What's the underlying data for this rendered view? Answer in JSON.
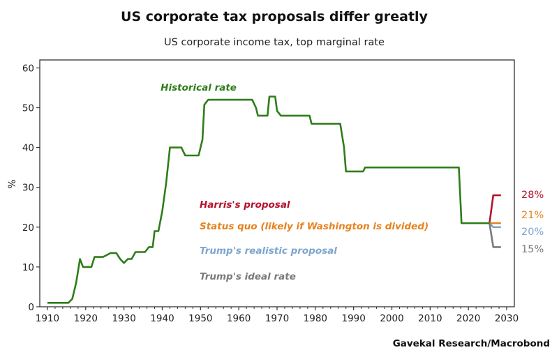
{
  "chart_data": {
    "type": "line",
    "title": "US corporate tax proposals differ greatly",
    "subtitle": "US corporate income tax, top marginal rate",
    "xlabel": "",
    "ylabel": "%",
    "xlim": [
      1908,
      2032
    ],
    "ylim": [
      0,
      62
    ],
    "xticks": [
      1910,
      1920,
      1930,
      1940,
      1950,
      1960,
      1970,
      1980,
      1990,
      2000,
      2010,
      2020,
      2030
    ],
    "yticks": [
      0,
      10,
      20,
      30,
      40,
      50,
      60
    ],
    "source": "Gavekal Research/Macrobond",
    "annotations": [
      {
        "text": "Historical rate",
        "color": "#2e7d1a"
      }
    ],
    "series": [
      {
        "name": "Historical rate",
        "color": "#2e7d1a",
        "points": [
          [
            1910,
            1
          ],
          [
            1915.5,
            1
          ],
          [
            1916.5,
            2
          ],
          [
            1917.5,
            6
          ],
          [
            1918.5,
            12
          ],
          [
            1919.3,
            10
          ],
          [
            1921.5,
            10
          ],
          [
            1922.3,
            12.5
          ],
          [
            1924.5,
            12.5
          ],
          [
            1925.5,
            13
          ],
          [
            1926.5,
            13.5
          ],
          [
            1928,
            13.5
          ],
          [
            1929,
            12
          ],
          [
            1930,
            11
          ],
          [
            1931,
            12
          ],
          [
            1932,
            12
          ],
          [
            1933,
            13.75
          ],
          [
            1935.5,
            13.75
          ],
          [
            1936.5,
            15
          ],
          [
            1937.5,
            15
          ],
          [
            1938,
            19
          ],
          [
            1939,
            19
          ],
          [
            1940,
            24
          ],
          [
            1941,
            31
          ],
          [
            1942,
            40
          ],
          [
            1945,
            40
          ],
          [
            1946,
            38
          ],
          [
            1949.5,
            38
          ],
          [
            1950.5,
            42
          ],
          [
            1951,
            50.75
          ],
          [
            1952,
            52
          ],
          [
            1963.5,
            52
          ],
          [
            1964.5,
            50
          ],
          [
            1965,
            48
          ],
          [
            1967.5,
            48
          ],
          [
            1968,
            52.8
          ],
          [
            1969.5,
            52.8
          ],
          [
            1970,
            49.2
          ],
          [
            1971,
            48
          ],
          [
            1978.5,
            48
          ],
          [
            1979,
            46
          ],
          [
            1986.5,
            46
          ],
          [
            1987.5,
            40
          ],
          [
            1988,
            34
          ],
          [
            1992.5,
            34
          ],
          [
            1993,
            35
          ],
          [
            2017.5,
            35
          ],
          [
            2018.2,
            21
          ],
          [
            2025.5,
            21
          ]
        ]
      },
      {
        "name": "Harris's proposal",
        "color": "#b5122e",
        "end_label": "28%",
        "points": [
          [
            2025.5,
            21
          ],
          [
            2026.5,
            28
          ],
          [
            2028.5,
            28
          ]
        ]
      },
      {
        "name": "Status quo (likely if Washington is divided)",
        "color": "#e6821e",
        "end_label": "21%",
        "points": [
          [
            2025.5,
            21
          ],
          [
            2028.5,
            21
          ]
        ]
      },
      {
        "name": "Trump's realistic proposal",
        "color": "#7ea6cf",
        "end_label": "20%",
        "points": [
          [
            2025.5,
            21
          ],
          [
            2026.5,
            20
          ],
          [
            2028.5,
            20
          ]
        ]
      },
      {
        "name": "Trump's ideal rate",
        "color": "#7a7a7a",
        "end_label": "15%",
        "points": [
          [
            2025.5,
            21
          ],
          [
            2026.5,
            15
          ],
          [
            2028.5,
            15
          ]
        ]
      }
    ]
  }
}
